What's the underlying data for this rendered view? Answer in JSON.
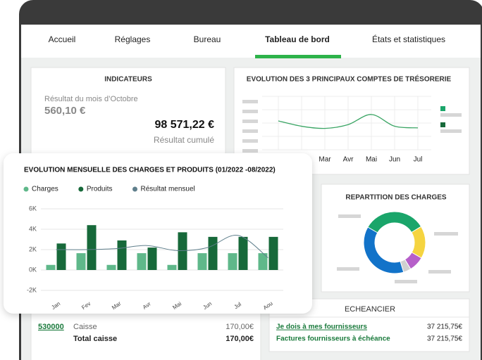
{
  "nav": [
    "Accueil",
    "Réglages",
    "Bureau",
    "Tableau de bord",
    "États et statistiques"
  ],
  "indicators": {
    "title": "INDICATEURS",
    "month_label": "Résultat du mois d’Octobre",
    "month_value": "560,10 €",
    "cumul_value": "98 571,22 €",
    "cumul_label": "Résultat cumulé"
  },
  "treasury_chart": {
    "type": "line",
    "title": "EVOLUTION DES 3 PRINCIPAUX COMPTES DE TRÉSORERIE",
    "categories": [
      null,
      null,
      "Mar",
      "Avr",
      "Mai",
      "Jun",
      "Jul"
    ],
    "values": [
      54,
      44,
      40,
      47,
      66,
      44,
      41
    ],
    "color": "#3aa564",
    "ylim": [
      0,
      100
    ],
    "grid": true
  },
  "monthly_chart": {
    "type": "bar",
    "title": "EVOLUTION MENSUELLE DES CHARGES ET PRODUITS (01/2022 -08/2022)",
    "categories": [
      "Jan",
      "Fev",
      "Mar",
      "Avr",
      "Mai",
      "Jun",
      "Jul",
      "Aou"
    ],
    "series": [
      {
        "name": "Charges",
        "color": "#5fb88a",
        "values": [
          500,
          1650,
          500,
          1650,
          500,
          1650,
          1650,
          1650
        ]
      },
      {
        "name": "Produits",
        "color": "#17693a",
        "values": [
          2600,
          4400,
          2900,
          2200,
          3700,
          3250,
          3250,
          3250
        ]
      },
      {
        "name": "Résultat mensuel",
        "type": "line",
        "color": "#5f7f8c",
        "values": [
          2000,
          2000,
          2100,
          2400,
          1900,
          2200,
          3400,
          1200
        ]
      }
    ],
    "ylim": [
      -2000,
      6000
    ],
    "yticks": [
      {
        "value": 6000,
        "label": "6K"
      },
      {
        "value": 4000,
        "label": "4K"
      },
      {
        "value": 2000,
        "label": "2K"
      },
      {
        "value": 0,
        "label": "0K"
      },
      {
        "value": -2000,
        "label": "-2K"
      }
    ],
    "grid": true
  },
  "charges_chart": {
    "type": "pie",
    "title": "REPARTITION DES CHARGES",
    "donut": true,
    "values": [
      33,
      17,
      8,
      4,
      38
    ],
    "colors": [
      "#1aa56a",
      "#f5d440",
      "#b65fc9",
      "#d0d0d0",
      "#1273c9"
    ]
  },
  "caisse": {
    "account": "530000",
    "label": "Caisse",
    "amount": "170,00€",
    "total_label": "Total caisse",
    "total_amount": "170,00€"
  },
  "echeancier": {
    "title": "ECHEANCIER",
    "rows": [
      {
        "label": "Je dois à mes fournisseurs",
        "amount": "37 215,75€"
      },
      {
        "label": "Factures fournisseurs à échéance",
        "amount": "37 215,75€"
      }
    ]
  }
}
